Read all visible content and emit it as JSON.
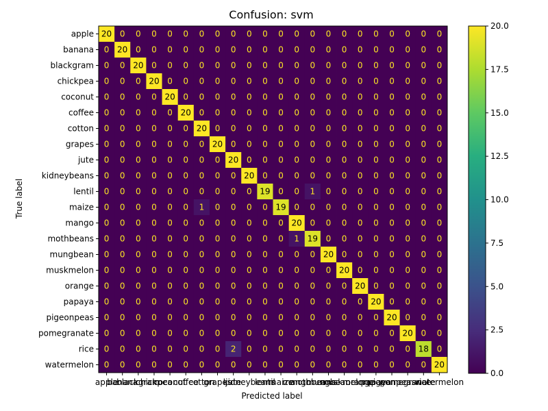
{
  "chart_data": {
    "type": "heatmap",
    "title": "Confusion: svm",
    "xlabel": "Predicted label",
    "ylabel": "True label",
    "labels": [
      "apple",
      "banana",
      "blackgram",
      "chickpea",
      "coconut",
      "coffee",
      "cotton",
      "grapes",
      "jute",
      "kidneybeans",
      "lentil",
      "maize",
      "mango",
      "mothbeans",
      "mungbean",
      "muskmelon",
      "orange",
      "papaya",
      "pigeonpeas",
      "pomegranate",
      "rice",
      "watermelon"
    ],
    "matrix": [
      [
        20,
        0,
        0,
        0,
        0,
        0,
        0,
        0,
        0,
        0,
        0,
        0,
        0,
        0,
        0,
        0,
        0,
        0,
        0,
        0,
        0,
        0
      ],
      [
        0,
        20,
        0,
        0,
        0,
        0,
        0,
        0,
        0,
        0,
        0,
        0,
        0,
        0,
        0,
        0,
        0,
        0,
        0,
        0,
        0,
        0
      ],
      [
        0,
        0,
        20,
        0,
        0,
        0,
        0,
        0,
        0,
        0,
        0,
        0,
        0,
        0,
        0,
        0,
        0,
        0,
        0,
        0,
        0,
        0
      ],
      [
        0,
        0,
        0,
        20,
        0,
        0,
        0,
        0,
        0,
        0,
        0,
        0,
        0,
        0,
        0,
        0,
        0,
        0,
        0,
        0,
        0,
        0
      ],
      [
        0,
        0,
        0,
        0,
        20,
        0,
        0,
        0,
        0,
        0,
        0,
        0,
        0,
        0,
        0,
        0,
        0,
        0,
        0,
        0,
        0,
        0
      ],
      [
        0,
        0,
        0,
        0,
        0,
        20,
        0,
        0,
        0,
        0,
        0,
        0,
        0,
        0,
        0,
        0,
        0,
        0,
        0,
        0,
        0,
        0
      ],
      [
        0,
        0,
        0,
        0,
        0,
        0,
        20,
        0,
        0,
        0,
        0,
        0,
        0,
        0,
        0,
        0,
        0,
        0,
        0,
        0,
        0,
        0
      ],
      [
        0,
        0,
        0,
        0,
        0,
        0,
        0,
        20,
        0,
        0,
        0,
        0,
        0,
        0,
        0,
        0,
        0,
        0,
        0,
        0,
        0,
        0
      ],
      [
        0,
        0,
        0,
        0,
        0,
        0,
        0,
        0,
        20,
        0,
        0,
        0,
        0,
        0,
        0,
        0,
        0,
        0,
        0,
        0,
        0,
        0
      ],
      [
        0,
        0,
        0,
        0,
        0,
        0,
        0,
        0,
        0,
        20,
        0,
        0,
        0,
        0,
        0,
        0,
        0,
        0,
        0,
        0,
        0,
        0
      ],
      [
        0,
        0,
        0,
        0,
        0,
        0,
        0,
        0,
        0,
        0,
        19,
        0,
        0,
        1,
        0,
        0,
        0,
        0,
        0,
        0,
        0,
        0
      ],
      [
        0,
        0,
        0,
        0,
        0,
        0,
        1,
        0,
        0,
        0,
        0,
        19,
        0,
        0,
        0,
        0,
        0,
        0,
        0,
        0,
        0,
        0
      ],
      [
        0,
        0,
        0,
        0,
        0,
        0,
        0,
        0,
        0,
        0,
        0,
        0,
        20,
        0,
        0,
        0,
        0,
        0,
        0,
        0,
        0,
        0
      ],
      [
        0,
        0,
        0,
        0,
        0,
        0,
        0,
        0,
        0,
        0,
        0,
        0,
        1,
        19,
        0,
        0,
        0,
        0,
        0,
        0,
        0,
        0
      ],
      [
        0,
        0,
        0,
        0,
        0,
        0,
        0,
        0,
        0,
        0,
        0,
        0,
        0,
        0,
        20,
        0,
        0,
        0,
        0,
        0,
        0,
        0
      ],
      [
        0,
        0,
        0,
        0,
        0,
        0,
        0,
        0,
        0,
        0,
        0,
        0,
        0,
        0,
        0,
        20,
        0,
        0,
        0,
        0,
        0,
        0
      ],
      [
        0,
        0,
        0,
        0,
        0,
        0,
        0,
        0,
        0,
        0,
        0,
        0,
        0,
        0,
        0,
        0,
        20,
        0,
        0,
        0,
        0,
        0
      ],
      [
        0,
        0,
        0,
        0,
        0,
        0,
        0,
        0,
        0,
        0,
        0,
        0,
        0,
        0,
        0,
        0,
        0,
        20,
        0,
        0,
        0,
        0
      ],
      [
        0,
        0,
        0,
        0,
        0,
        0,
        0,
        0,
        0,
        0,
        0,
        0,
        0,
        0,
        0,
        0,
        0,
        0,
        20,
        0,
        0,
        0
      ],
      [
        0,
        0,
        0,
        0,
        0,
        0,
        0,
        0,
        0,
        0,
        0,
        0,
        0,
        0,
        0,
        0,
        0,
        0,
        0,
        20,
        0,
        0
      ],
      [
        0,
        0,
        0,
        0,
        0,
        0,
        0,
        0,
        2,
        0,
        0,
        0,
        0,
        0,
        0,
        0,
        0,
        0,
        0,
        0,
        18,
        0
      ],
      [
        0,
        0,
        0,
        0,
        0,
        0,
        0,
        0,
        0,
        0,
        0,
        0,
        0,
        0,
        0,
        0,
        0,
        0,
        0,
        0,
        0,
        20
      ]
    ],
    "vmin": 0,
    "vmax": 20,
    "colormap": "viridis",
    "colorbar_ticks": [
      "0.0",
      "2.5",
      "5.0",
      "7.5",
      "10.0",
      "12.5",
      "15.0",
      "17.5",
      "20.0"
    ],
    "colorbar_tick_values": [
      0,
      2.5,
      5,
      7.5,
      10,
      12.5,
      15,
      17.5,
      20
    ],
    "grid": false,
    "legend": "colorbar-right"
  }
}
